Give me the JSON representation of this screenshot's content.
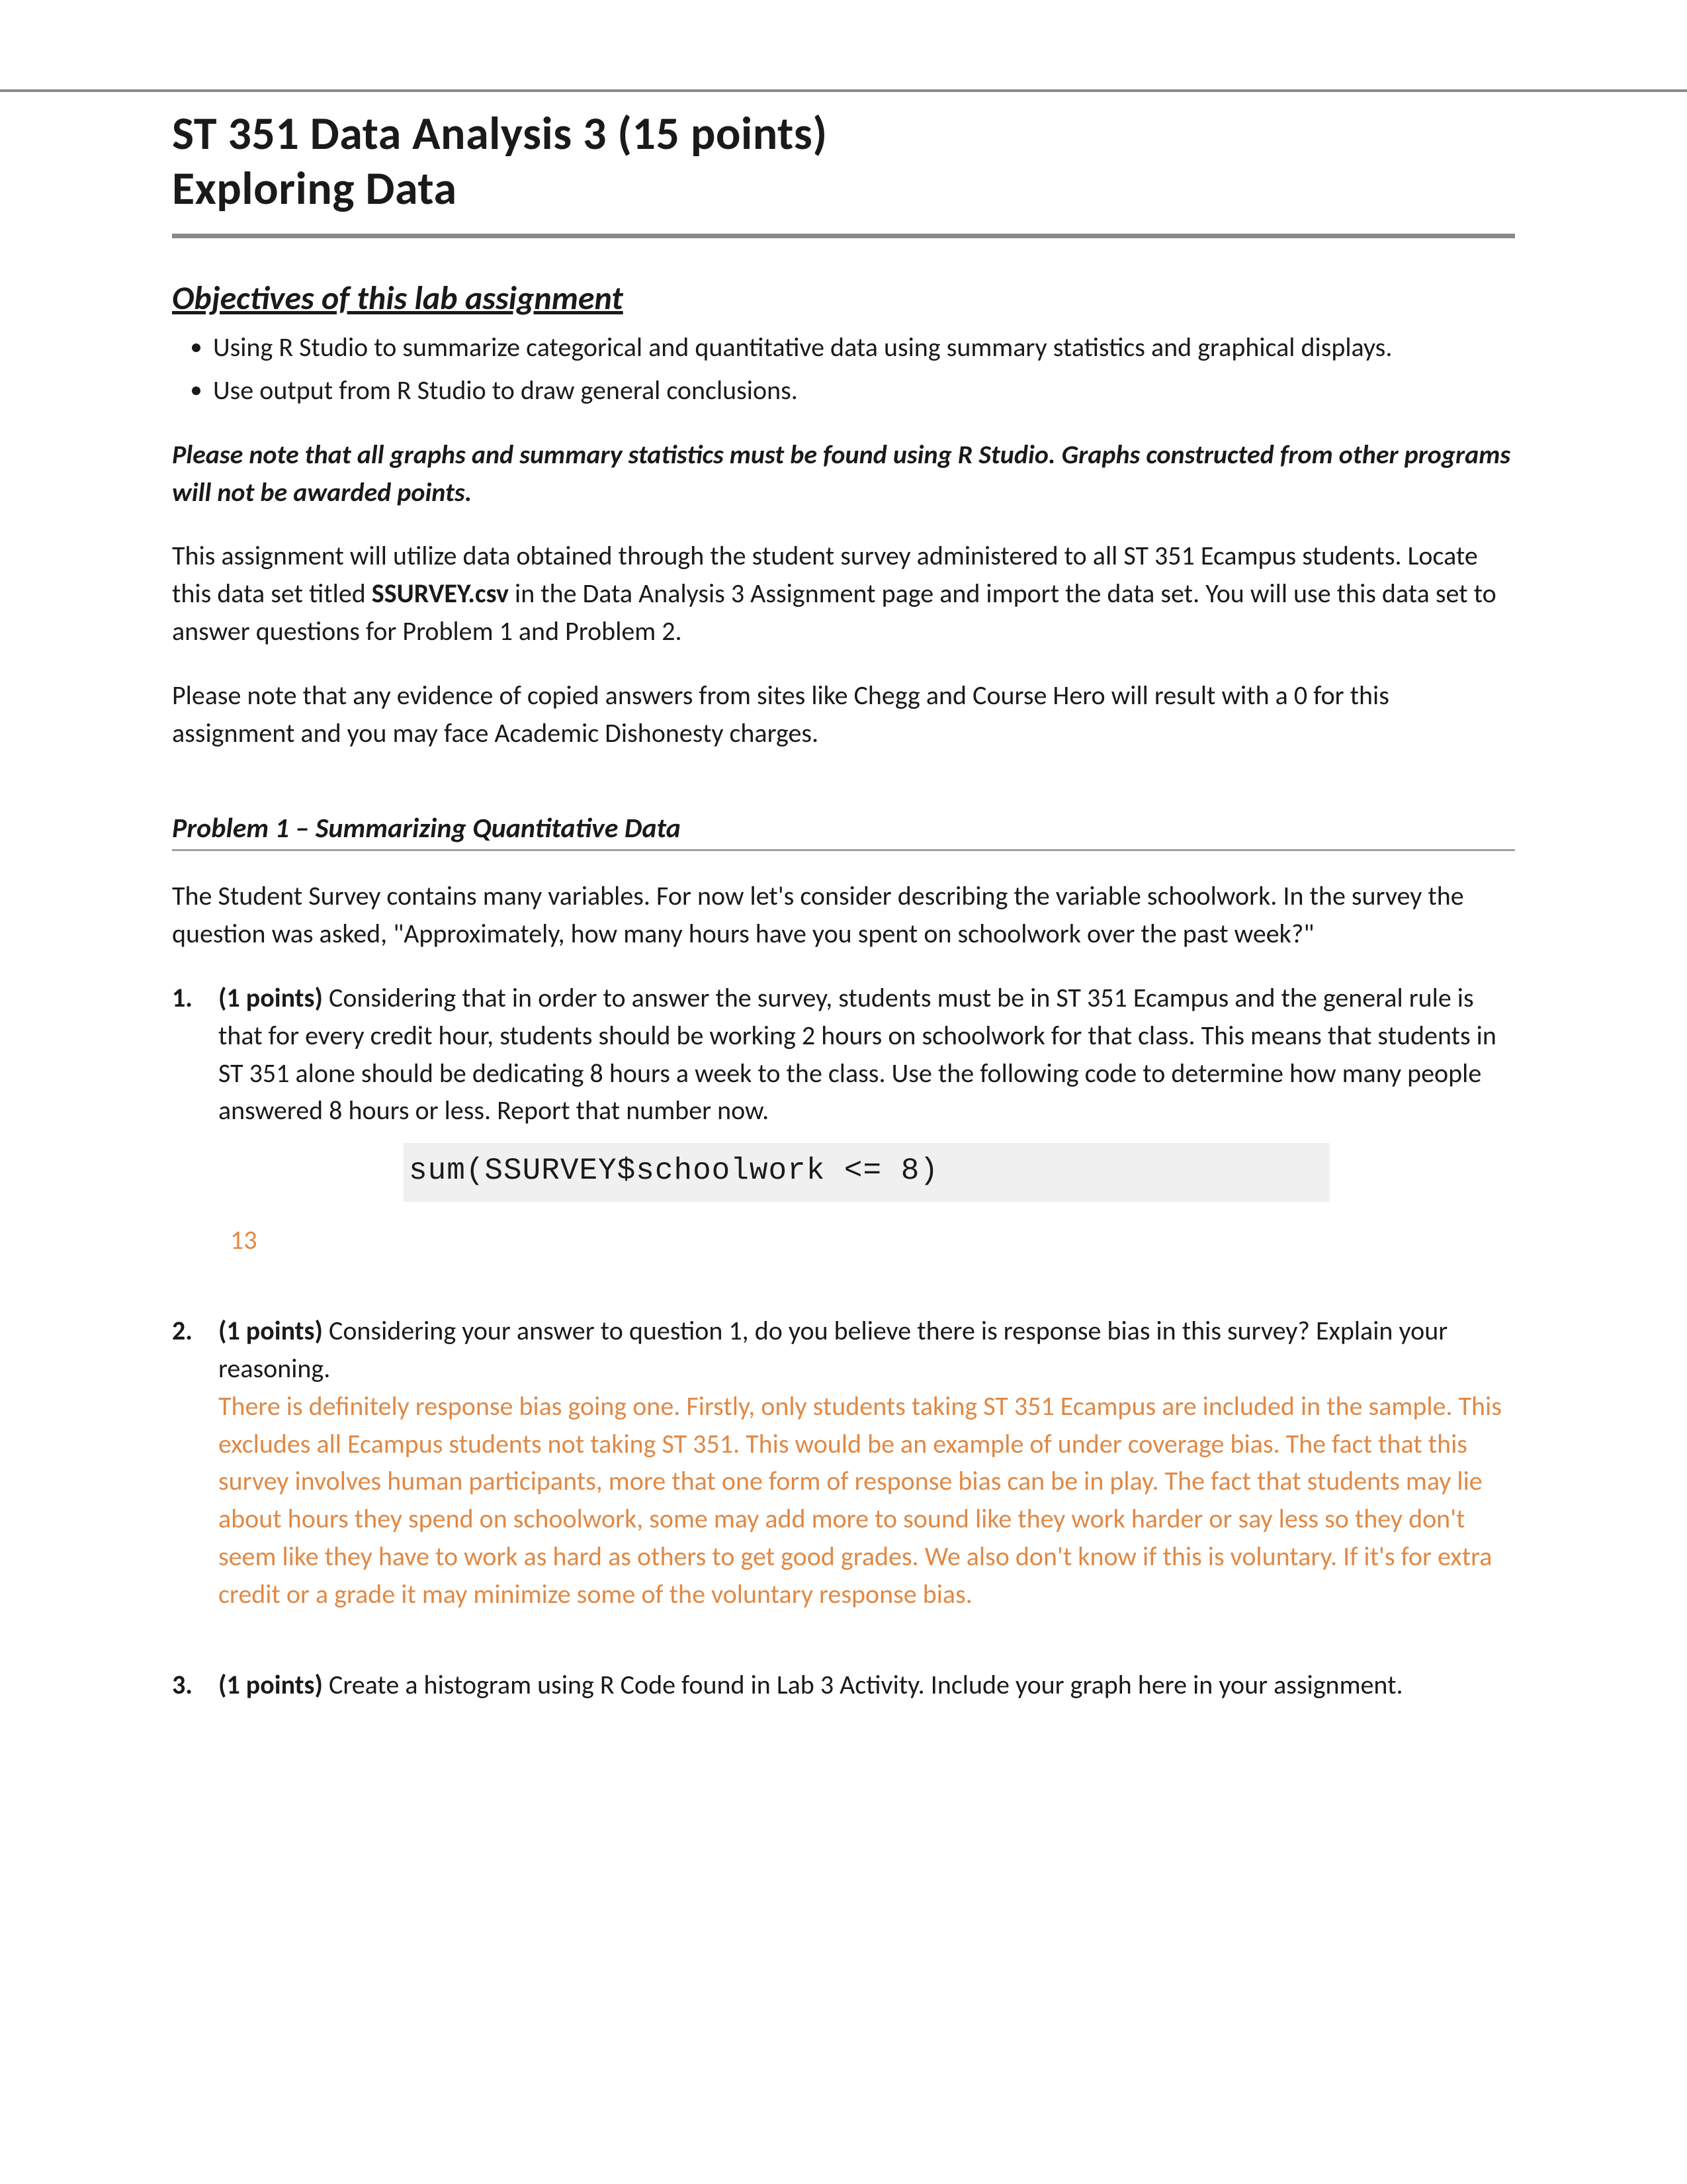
{
  "colors": {
    "text": "#1a1a1a",
    "answer": "#e08945",
    "rule": "#8a8a8a",
    "codeBg": "#f0f0f0",
    "background": "#ffffff"
  },
  "title": {
    "line1": "ST 351  Data Analysis 3 (15 points)",
    "line2": "Exploring Data"
  },
  "objectives": {
    "heading": "Objectives of this lab assignment",
    "items": [
      "Using R Studio to summarize categorical and quantitative data using summary statistics and graphical displays.",
      "Use output from R Studio to draw general conclusions."
    ]
  },
  "note": "Please note that all graphs and summary statistics must be found using R Studio. Graphs constructed from other programs will not be awarded points.",
  "intro1_a": "This assignment will utilize data obtained through the student survey administered to all ST 351 Ecampus students. Locate this data set titled ",
  "intro1_bold": "SSURVEY.csv",
  "intro1_b": " in the Data Analysis 3 Assignment page and import the data set. You will use this data set to answer questions for Problem 1 and Problem 2.",
  "intro2": "Please note that any evidence of copied answers from sites like Chegg and Course Hero will result with a 0 for this assignment and you may face Academic Dishonesty charges.",
  "problem1": {
    "heading": "Problem 1 – Summarizing Quantitative Data",
    "lead": "The Student Survey contains many variables. For now let's consider describing the variable schoolwork. In the survey the question was asked, \"Approximately, how many hours have you spent on schoolwork over the past week?\""
  },
  "q1": {
    "points": "(1 points)",
    "text": " Considering that in order to answer the survey, students must be in ST 351 Ecampus and the general rule is that for every credit hour, students should be working 2 hours on schoolwork for that class. This means that students in ST 351 alone should be dedicating 8 hours a week to the class. Use the following code to determine how many people answered 8 hours or less. Report that number now.",
    "code": "sum(SSURVEY$schoolwork <= 8)",
    "answer": "13"
  },
  "q2": {
    "points": "(1 points)",
    "text": " Considering your answer to question 1, do you believe there is response bias in this survey? Explain your reasoning.",
    "answer": "There is definitely response bias going one. Firstly, only students taking ST 351 Ecampus are included in the sample. This excludes all Ecampus students not taking ST 351. This would be an example of under coverage bias. The fact that this survey involves human participants, more that one form of response bias can be in play. The fact that students may lie about hours they spend on schoolwork, some may add more to sound like they work harder or say less so they don't seem like they have to work as hard as others to get good grades. We also don't know if this is voluntary. If it's for extra credit or a grade it may minimize some of the voluntary response bias."
  },
  "q3": {
    "points": "(1 points)",
    "text": " Create a histogram using R Code found in Lab 3 Activity. Include your graph here in your assignment."
  }
}
